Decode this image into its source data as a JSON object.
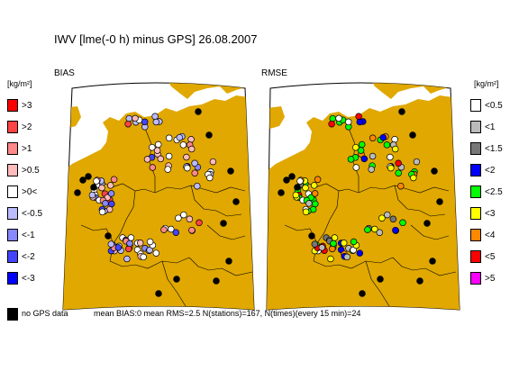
{
  "title": "IWV [lme(-0 h) minus GPS] 26.08.2007",
  "left_panel": {
    "subtitle": "BIAS"
  },
  "right_panel": {
    "subtitle": "RMSE"
  },
  "unit_label": "[kg/m²]",
  "bias_legend": [
    {
      "label": ">3",
      "color": "#ff0000"
    },
    {
      "label": ">2",
      "color": "#ff4444"
    },
    {
      "label": ">1",
      "color": "#ff8888"
    },
    {
      "label": ">0.5",
      "color": "#ffbbbb"
    },
    {
      "label": ">0<",
      "color": "#ffffff"
    },
    {
      "label": "<-0.5",
      "color": "#bbbbff"
    },
    {
      "label": "<-1",
      "color": "#8888ff"
    },
    {
      "label": "<-2",
      "color": "#4444ff"
    },
    {
      "label": "<-3",
      "color": "#0000ff"
    }
  ],
  "rmse_legend": [
    {
      "label": "<0.5",
      "color": "#ffffff"
    },
    {
      "label": "<1",
      "color": "#bbbbbb"
    },
    {
      "label": "<1.5",
      "color": "#777777"
    },
    {
      "label": "<2",
      "color": "#0000ff"
    },
    {
      "label": "<2.5",
      "color": "#00ff00"
    },
    {
      "label": "<3",
      "color": "#ffff00"
    },
    {
      "label": "<4",
      "color": "#ff8800"
    },
    {
      "label": "<5",
      "color": "#ff0000"
    },
    {
      "label": ">5",
      "color": "#ff00ff"
    }
  ],
  "footer": {
    "nogps_label": "no GPS data",
    "stats": "mean BIAS:0   mean RMS=2.5   N(stations)=167, N(times)(every 15 min)=24"
  },
  "colors": {
    "land": "#e0a800",
    "sea": "#ffffff",
    "border": "#000000",
    "nodata": "#000000"
  }
}
